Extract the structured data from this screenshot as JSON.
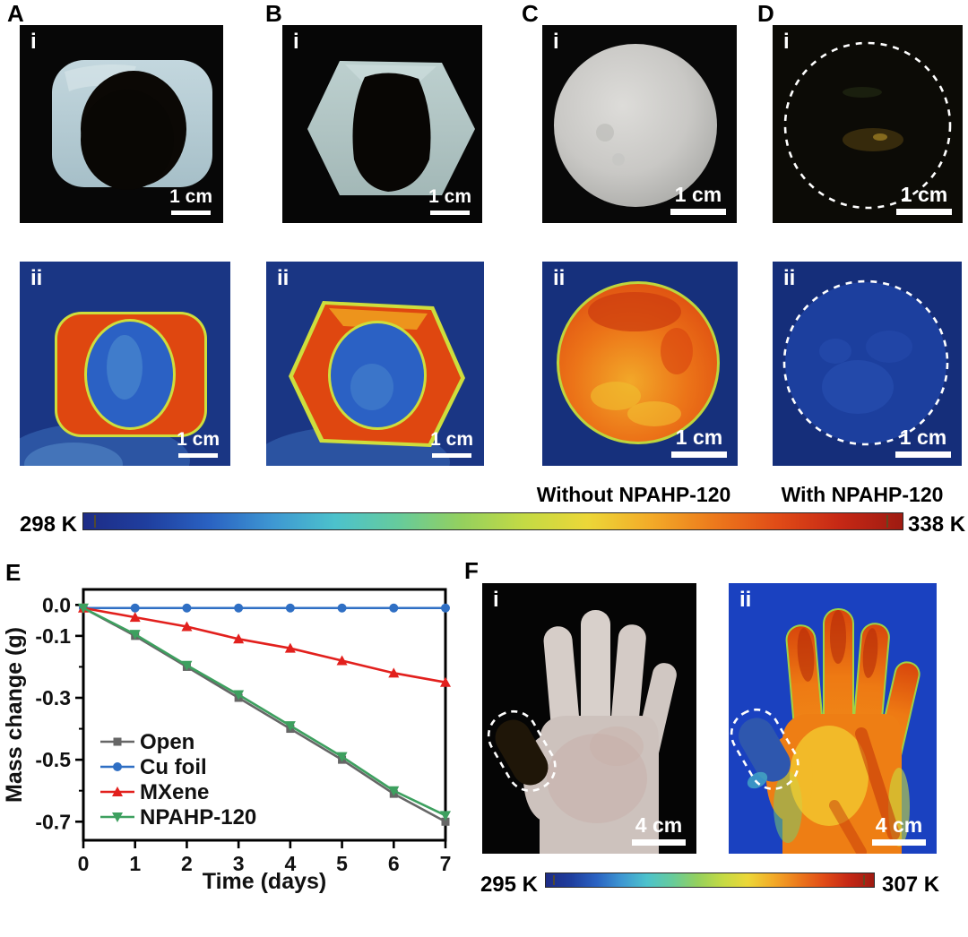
{
  "labels": {
    "A": "A",
    "B": "B",
    "C": "C",
    "D": "D",
    "E": "E",
    "F": "F",
    "i": "i",
    "ii": "ii"
  },
  "scalebars": {
    "one_cm": "1 cm",
    "four_cm": "4 cm"
  },
  "captions": {
    "without": "Without NPAHP-120",
    "with": "With NPAHP-120"
  },
  "colorbar_top": {
    "min": "298 K",
    "max": "338 K",
    "gradient": [
      "#1e2c86",
      "#1f3e9e",
      "#2a62c2",
      "#3e97d2",
      "#4cc2cc",
      "#66cb9c",
      "#94d05e",
      "#c4da44",
      "#ecd738",
      "#f3ab28",
      "#ec7a1c",
      "#e14c17",
      "#c62815",
      "#9e1b12"
    ]
  },
  "colorbar_bottom": {
    "min": "295 K",
    "max": "307 K",
    "gradient": [
      "#1e2c86",
      "#1f3e9e",
      "#2a62c2",
      "#3e97d2",
      "#4cc2cc",
      "#66cb9c",
      "#94d05e",
      "#c4da44",
      "#ecd738",
      "#f3ab28",
      "#ec7a1c",
      "#e14c17",
      "#c62815",
      "#9e1b12"
    ]
  },
  "chart_data": {
    "type": "line",
    "title": "",
    "xlabel": "Time (days)",
    "ylabel": "Mass change (g)",
    "x": [
      0,
      1,
      2,
      3,
      4,
      5,
      6,
      7
    ],
    "xticks": [
      0,
      1,
      2,
      3,
      4,
      5,
      6,
      7
    ],
    "xlim": [
      0,
      7
    ],
    "ylim": [
      -0.76,
      0.05
    ],
    "yticks": [
      0.0,
      -0.1,
      -0.3,
      -0.5,
      -0.7
    ],
    "yticks_minor": [
      -0.2,
      -0.4,
      -0.6
    ],
    "grid": false,
    "legend_position": "lower-left",
    "series": [
      {
        "name": "Open",
        "color": "#666666",
        "marker": "square",
        "values": [
          -0.01,
          -0.1,
          -0.2,
          -0.3,
          -0.4,
          -0.5,
          -0.61,
          -0.7
        ]
      },
      {
        "name": "Cu foil",
        "color": "#2f6fc4",
        "marker": "circle",
        "values": [
          -0.01,
          -0.01,
          -0.01,
          -0.01,
          -0.01,
          -0.01,
          -0.01,
          -0.01
        ]
      },
      {
        "name": "MXene",
        "color": "#e2201d",
        "marker": "triangle-up",
        "values": [
          -0.01,
          -0.04,
          -0.07,
          -0.11,
          -0.14,
          -0.18,
          -0.22,
          -0.25
        ]
      },
      {
        "name": "NPAHP-120",
        "color": "#3da05f",
        "marker": "triangle-down",
        "values": [
          -0.01,
          -0.095,
          -0.195,
          -0.29,
          -0.39,
          -0.49,
          -0.6,
          -0.68
        ]
      }
    ]
  }
}
